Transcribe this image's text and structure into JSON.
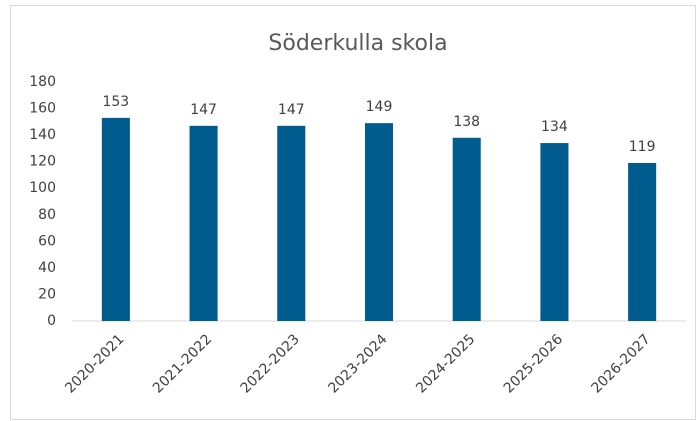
{
  "chart_data": {
    "type": "bar",
    "title": "Söderkulla skola",
    "categories": [
      "2020-2021",
      "2021-2022",
      "2022-2023",
      "2023-2024",
      "2024-2025",
      "2025-2026",
      "2026-2027"
    ],
    "values": [
      153,
      147,
      147,
      149,
      138,
      134,
      119
    ],
    "color": "#005b8f",
    "ylim": [
      0,
      180
    ],
    "yticks": [
      0,
      20,
      40,
      60,
      80,
      100,
      120,
      140,
      160,
      180
    ],
    "grid": false,
    "data_labels": true
  }
}
